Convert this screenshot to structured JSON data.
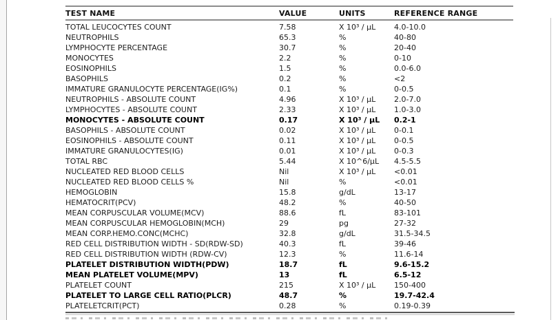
{
  "report_table": {
    "columns": [
      "TEST NAME",
      "VALUE",
      "UNITS",
      "REFERENCE RANGE"
    ],
    "rows": [
      {
        "name": "TOTAL LEUCOCYTES COUNT",
        "value": "7.58",
        "units": "X 10³ / µL",
        "range": "4.0-10.0",
        "flagged": false
      },
      {
        "name": "NEUTROPHILS",
        "value": "65.3",
        "units": "%",
        "range": "40-80",
        "flagged": false
      },
      {
        "name": "LYMPHOCYTE PERCENTAGE",
        "value": "30.7",
        "units": "%",
        "range": "20-40",
        "flagged": false
      },
      {
        "name": "MONOCYTES",
        "value": "2.2",
        "units": "%",
        "range": "0-10",
        "flagged": false
      },
      {
        "name": "EOSINOPHILS",
        "value": "1.5",
        "units": "%",
        "range": "0.0-6.0",
        "flagged": false
      },
      {
        "name": "BASOPHILS",
        "value": "0.2",
        "units": "%",
        "range": "<2",
        "flagged": false
      },
      {
        "name": "IMMATURE GRANULOCYTE PERCENTAGE(IG%)",
        "value": "0.1",
        "units": "%",
        "range": "0-0.5",
        "flagged": false
      },
      {
        "name": "NEUTROPHILS - ABSOLUTE COUNT",
        "value": "4.96",
        "units": "X 10³ / µL",
        "range": "2.0-7.0",
        "flagged": false
      },
      {
        "name": "LYMPHOCYTES - ABSOLUTE COUNT",
        "value": "2.33",
        "units": "X 10³ / µL",
        "range": "1.0-3.0",
        "flagged": false
      },
      {
        "name": "MONOCYTES - ABSOLUTE COUNT",
        "value": "0.17",
        "units": "X 10³ / µL",
        "range": "0.2-1",
        "flagged": true
      },
      {
        "name": "BASOPHILS - ABSOLUTE COUNT",
        "value": "0.02",
        "units": "X 10³ / µL",
        "range": "0-0.1",
        "flagged": false
      },
      {
        "name": "EOSINOPHILS - ABSOLUTE COUNT",
        "value": "0.11",
        "units": "X 10³ / µL",
        "range": "0-0.5",
        "flagged": false
      },
      {
        "name": "IMMATURE GRANULOCYTES(IG)",
        "value": "0.01",
        "units": "X 10³ / µL",
        "range": "0-0.3",
        "flagged": false
      },
      {
        "name": "TOTAL RBC",
        "value": "5.44",
        "units": "X 10^6/µL",
        "range": "4.5-5.5",
        "flagged": false
      },
      {
        "name": "NUCLEATED RED BLOOD CELLS",
        "value": "Nil",
        "units": "X 10³ / µL",
        "range": "<0.01",
        "flagged": false
      },
      {
        "name": "NUCLEATED RED BLOOD CELLS %",
        "value": "Nil",
        "units": "%",
        "range": "<0.01",
        "flagged": false
      },
      {
        "name": "HEMOGLOBIN",
        "value": "15.8",
        "units": "g/dL",
        "range": "13-17",
        "flagged": false
      },
      {
        "name": "HEMATOCRIT(PCV)",
        "value": "48.2",
        "units": "%",
        "range": "40-50",
        "flagged": false
      },
      {
        "name": "MEAN CORPUSCULAR VOLUME(MCV)",
        "value": "88.6",
        "units": "fL",
        "range": "83-101",
        "flagged": false
      },
      {
        "name": "MEAN CORPUSCULAR HEMOGLOBIN(MCH)",
        "value": "29",
        "units": "pg",
        "range": "27-32",
        "flagged": false
      },
      {
        "name": "MEAN CORP.HEMO.CONC(MCHC)",
        "value": "32.8",
        "units": "g/dL",
        "range": "31.5-34.5",
        "flagged": false
      },
      {
        "name": "RED CELL DISTRIBUTION WIDTH - SD(RDW-SD)",
        "value": "40.3",
        "units": "fL",
        "range": "39-46",
        "flagged": false
      },
      {
        "name": "RED CELL DISTRIBUTION WIDTH (RDW-CV)",
        "value": "12.3",
        "units": "%",
        "range": "11.6-14",
        "flagged": false
      },
      {
        "name": "PLATELET DISTRIBUTION WIDTH(PDW)",
        "value": "18.7",
        "units": "fL",
        "range": "9.6-15.2",
        "flagged": true
      },
      {
        "name": "MEAN PLATELET VOLUME(MPV)",
        "value": "13",
        "units": "fL",
        "range": "6.5-12",
        "flagged": true
      },
      {
        "name": "PLATELET COUNT",
        "value": "215",
        "units": "X 10³ / µL",
        "range": "150-400",
        "flagged": false
      },
      {
        "name": "PLATELET TO LARGE CELL RATIO(PLCR)",
        "value": "48.7",
        "units": "%",
        "range": "19.7-42.4",
        "flagged": true
      },
      {
        "name": "PLATELETCRIT(PCT)",
        "value": "0.28",
        "units": "%",
        "range": "0.19-0.39",
        "flagged": false
      }
    ]
  }
}
